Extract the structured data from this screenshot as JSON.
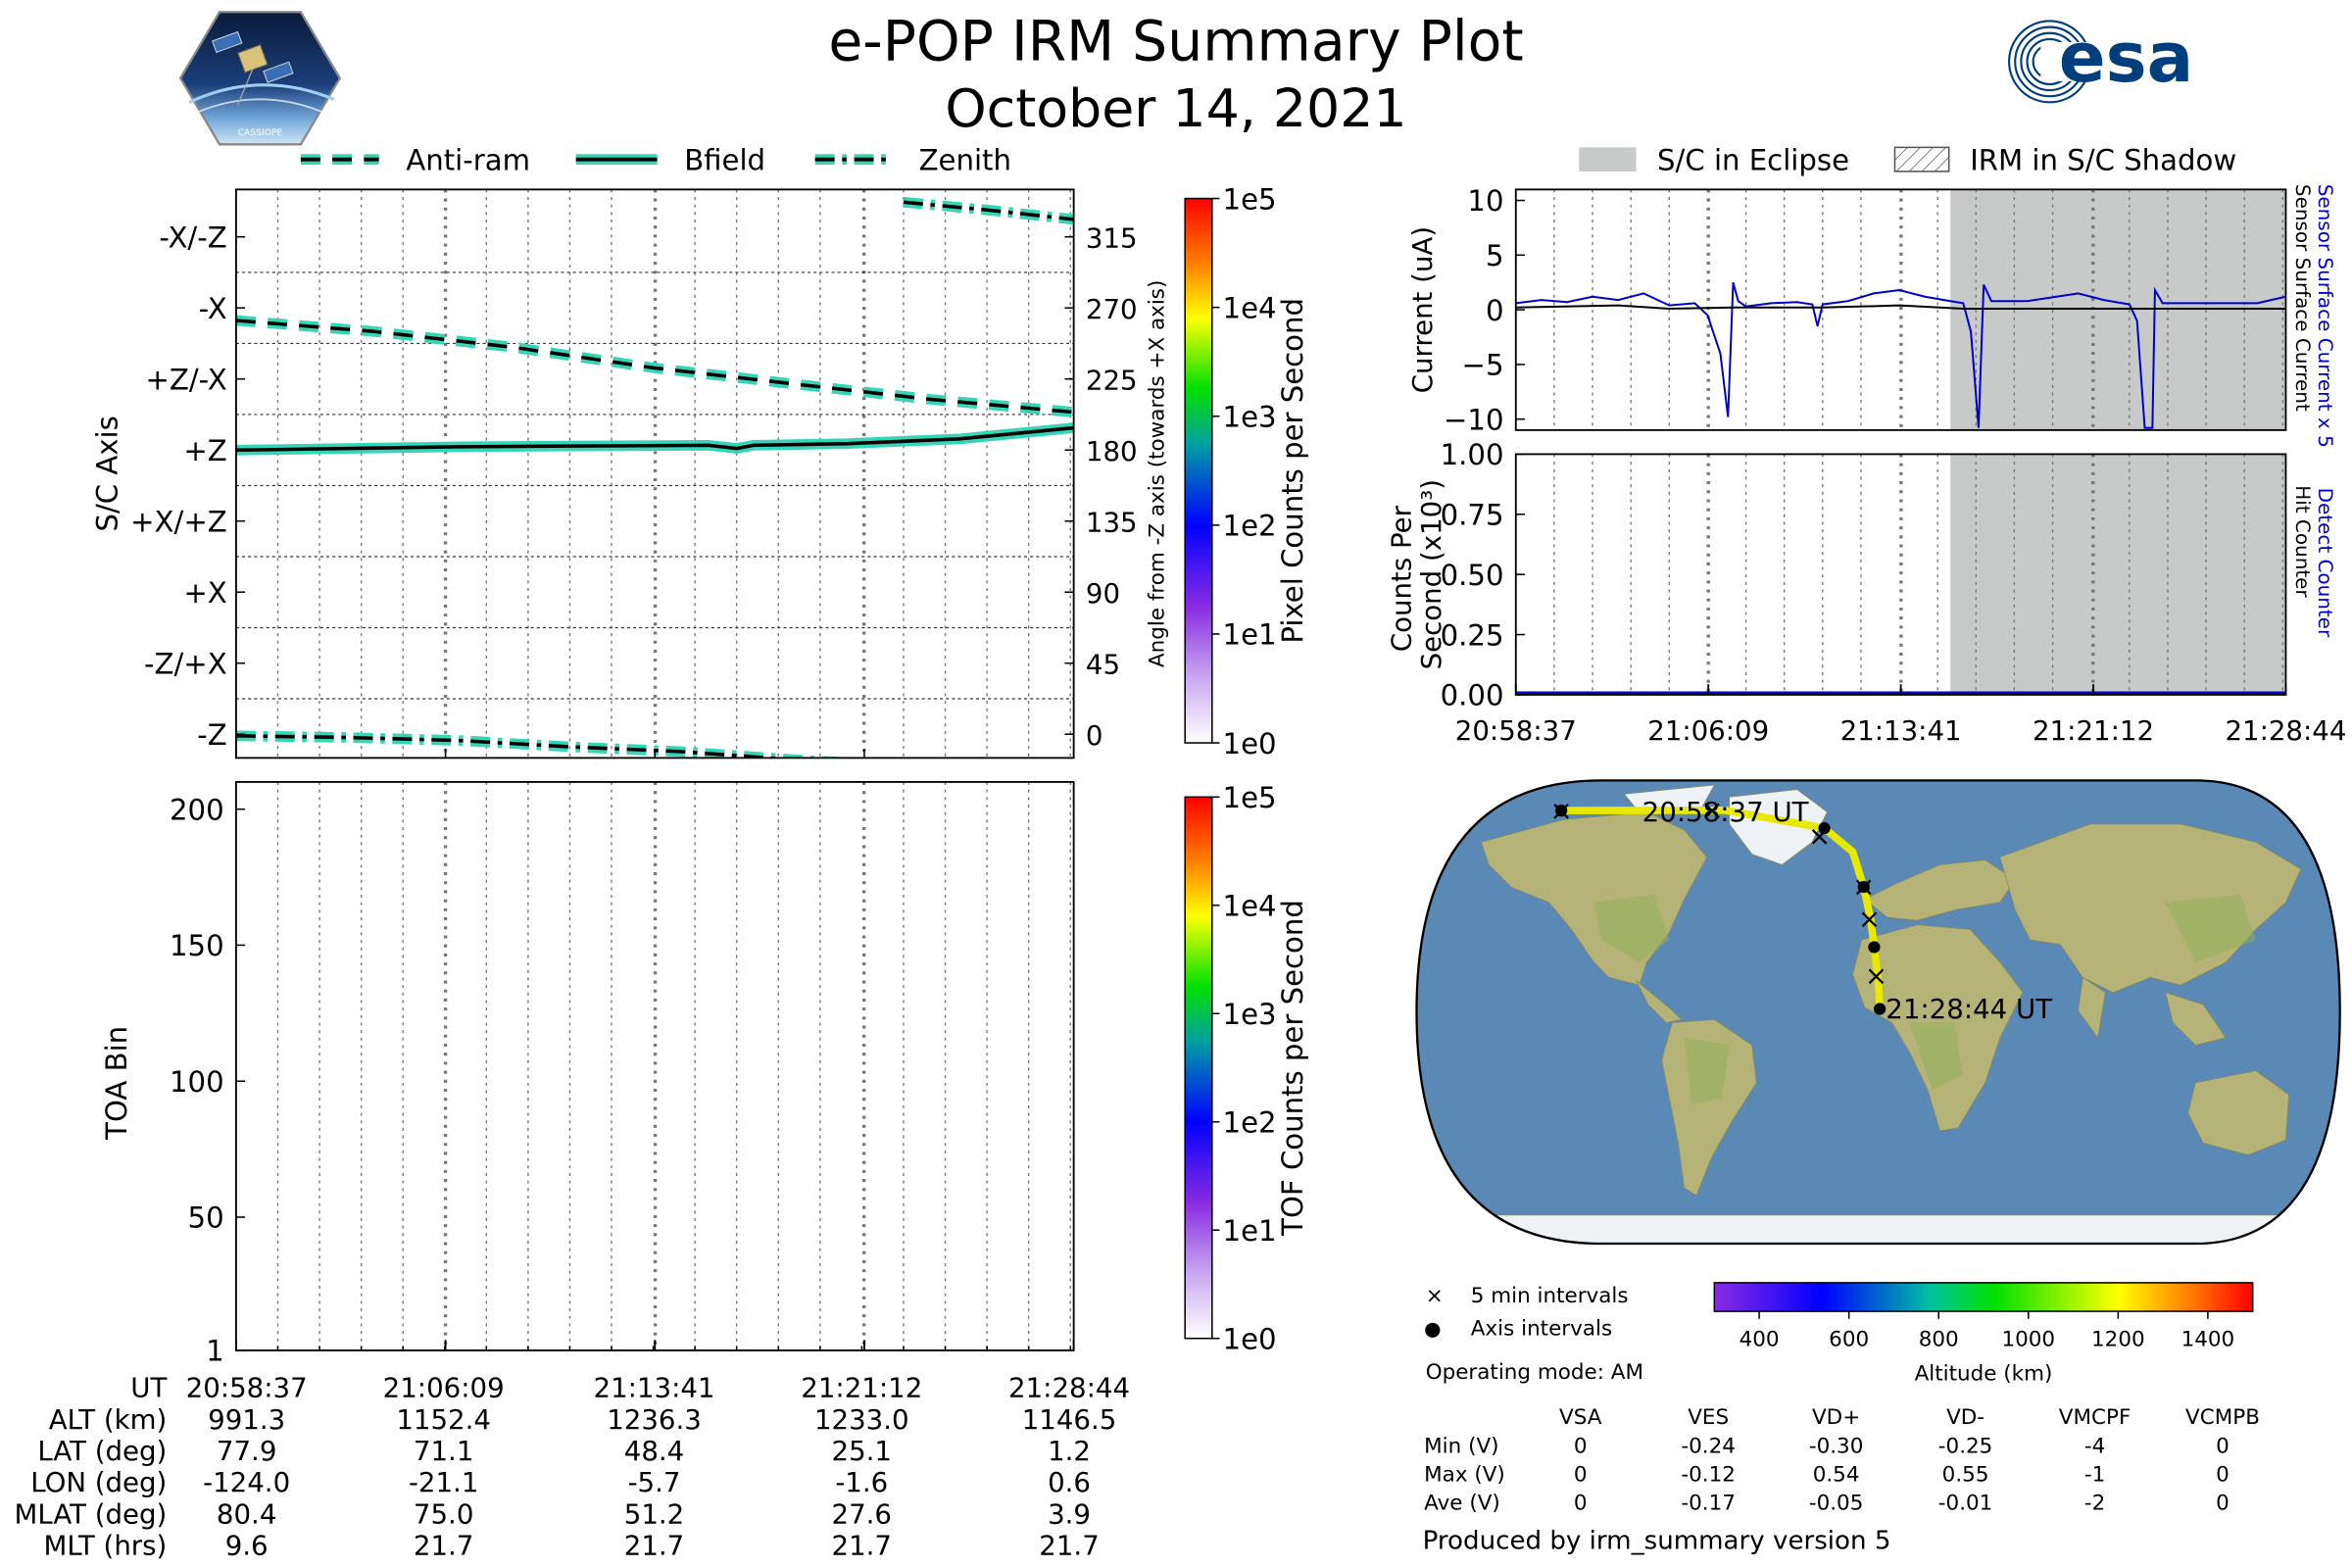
{
  "header": {
    "title": "e-POP IRM Summary Plot",
    "date": "October 14, 2021",
    "cassiope_logo_text": "CASSIOPE",
    "esa_logo_text": "esa"
  },
  "colors": {
    "teal": "#35d6b5",
    "black": "#000000",
    "blue": "#0000cc",
    "eclipse_gray": "#c8cac9",
    "track_yellow": "#e8e800"
  },
  "chart_data": [
    {
      "id": "sc-axis",
      "type": "line",
      "legend": [
        {
          "label": "Anti-ram",
          "style": "dashed"
        },
        {
          "label": "Bfield",
          "style": "solid"
        },
        {
          "label": "Zenith",
          "style": "dashdot"
        }
      ],
      "ylabel": "S/C Axis",
      "ylabel_right": "Angle from -Z axis (towards +X axis)",
      "left_ticks": [
        "-X/-Z",
        "-X",
        "+Z/-X",
        "+Z",
        "+X/+Z",
        "+X",
        "-Z/+X",
        "-Z"
      ],
      "right_ticks": [
        "315",
        "270",
        "225",
        "180",
        "135",
        "90",
        "45",
        "0"
      ],
      "ylim": [
        -15,
        345
      ],
      "x_minutes": [
        0,
        30.12
      ],
      "series": [
        {
          "name": "Anti-ram",
          "points": [
            [
              0,
              262
            ],
            [
              5,
              255
            ],
            [
              10,
              245
            ],
            [
              15,
              232
            ],
            [
              20,
              222
            ],
            [
              25,
              212
            ],
            [
              30.12,
              204
            ]
          ]
        },
        {
          "name": "Bfield",
          "points": [
            [
              0,
              180
            ],
            [
              4,
              181
            ],
            [
              8,
              182
            ],
            [
              12,
              182.5
            ],
            [
              17,
              183
            ],
            [
              18,
              181
            ],
            [
              18.6,
              183
            ],
            [
              22,
              184
            ],
            [
              26,
              187
            ],
            [
              30.12,
              194
            ]
          ]
        },
        {
          "name": "Zenith",
          "points": [
            [
              0,
              -1
            ],
            [
              4,
              -2
            ],
            [
              8,
              -4
            ],
            [
              12,
              -8
            ],
            [
              16,
              -11
            ],
            [
              20,
              -16
            ],
            [
              24,
              -20
            ]
          ]
        },
        {
          "name": "Zenith-upper",
          "points": [
            [
              24,
              337
            ],
            [
              27,
              332
            ],
            [
              30.12,
              326
            ]
          ]
        }
      ],
      "colorbar": {
        "label": "Pixel Counts per Second",
        "ticks": [
          "1e5",
          "1e4",
          "1e3",
          "1e2",
          "1e1",
          "1e0"
        ]
      }
    },
    {
      "id": "toa",
      "type": "heatmap",
      "ylabel": "TOA Bin",
      "y_ticks": [
        "200",
        "150",
        "100",
        "50",
        "1"
      ],
      "ylim": [
        1,
        210
      ],
      "colorbar": {
        "label": "TOF Counts per Second",
        "ticks": [
          "1e5",
          "1e4",
          "1e3",
          "1e2",
          "1e1",
          "1e0"
        ]
      }
    },
    {
      "id": "current",
      "type": "line",
      "legend": [
        {
          "label": "S/C in Eclipse",
          "style": "gray"
        },
        {
          "label": "IRM in S/C Shadow",
          "style": "hatch"
        }
      ],
      "ylabel": "Current (uA)",
      "right_label_blue": "Sensor Surface Current x 5",
      "right_label_black": "Sensor Surface Current",
      "y_ticks": [
        "10",
        "5",
        "0",
        "−5",
        "−10"
      ],
      "ylim": [
        -11,
        11
      ],
      "eclipse_start_min": 17.0,
      "series": [
        {
          "name": "Sensor Surface Current x 5",
          "points": [
            [
              0,
              0.6
            ],
            [
              1,
              0.9
            ],
            [
              2,
              0.7
            ],
            [
              3,
              1.2
            ],
            [
              4,
              0.9
            ],
            [
              5,
              1.5
            ],
            [
              6,
              0.4
            ],
            [
              7,
              0.6
            ],
            [
              7.5,
              -0.5
            ],
            [
              8.0,
              -4
            ],
            [
              8.3,
              -9.8
            ],
            [
              8.5,
              2.5
            ],
            [
              8.7,
              0.8
            ],
            [
              9,
              0.3
            ],
            [
              10,
              0.6
            ],
            [
              11,
              0.7
            ],
            [
              11.6,
              0.5
            ],
            [
              11.8,
              -1.5
            ],
            [
              12,
              0.5
            ],
            [
              13,
              0.8
            ],
            [
              14,
              1.5
            ],
            [
              15,
              1.8
            ],
            [
              16,
              1.2
            ],
            [
              17,
              0.8
            ],
            [
              17.5,
              0.6
            ],
            [
              17.8,
              -2
            ],
            [
              18.1,
              -10.8
            ],
            [
              18.3,
              2.3
            ],
            [
              18.6,
              0.8
            ],
            [
              20,
              0.8
            ],
            [
              22,
              1.5
            ],
            [
              23,
              0.9
            ],
            [
              24,
              0.5
            ],
            [
              24.3,
              -1
            ],
            [
              24.6,
              -10.8
            ],
            [
              24.9,
              -10.8
            ],
            [
              25.0,
              1.8
            ],
            [
              25.3,
              0.6
            ],
            [
              27,
              0.6
            ],
            [
              29,
              0.6
            ],
            [
              30.12,
              1.2
            ]
          ]
        },
        {
          "name": "Sensor Surface Current",
          "points": [
            [
              0,
              0.2
            ],
            [
              4,
              0.4
            ],
            [
              6,
              0.1
            ],
            [
              8.5,
              0.2
            ],
            [
              12,
              0.2
            ],
            [
              15,
              0.4
            ],
            [
              17.5,
              0.1
            ],
            [
              20,
              0.1
            ],
            [
              25,
              0.1
            ],
            [
              30.12,
              0.1
            ]
          ]
        }
      ]
    },
    {
      "id": "counts",
      "type": "line",
      "ylabel": "Counts Per Second (x10³)",
      "right_label_blue": "Detect Counter",
      "right_label_black": "Hit Counter",
      "y_ticks": [
        "1.00",
        "0.75",
        "0.50",
        "0.25",
        "0.00"
      ],
      "ylim": [
        0,
        1
      ],
      "x_ticks": [
        "20:58:37",
        "21:06:09",
        "21:13:41",
        "21:21:12",
        "21:28:44"
      ],
      "series": [
        {
          "name": "Detect Counter",
          "points": [
            [
              0,
              0.0
            ],
            [
              30.12,
              0.0
            ]
          ]
        }
      ]
    },
    {
      "id": "orbit-map",
      "type": "scatter",
      "start_label": "20:58:37 UT",
      "end_label": "21:28:44 UT",
      "track": [
        [
          -124.0,
          77.9
        ],
        [
          -60,
          78
        ],
        [
          -21.1,
          71.1
        ],
        [
          -10,
          62
        ],
        [
          -5.7,
          48.4
        ],
        [
          -3,
          36
        ],
        [
          -1.6,
          25.1
        ],
        [
          0,
          12
        ],
        [
          0.6,
          1.2
        ]
      ],
      "five_min_marks": [
        [
          -124.0,
          77.9
        ],
        [
          -65,
          78
        ],
        [
          -23,
          68
        ],
        [
          -5.7,
          48.4
        ],
        [
          -3.5,
          36
        ],
        [
          -0.8,
          14
        ]
      ],
      "axis_marks": [
        [
          -124.0,
          77.9
        ],
        [
          -21.1,
          71.1
        ],
        [
          -5.7,
          48.4
        ],
        [
          -1.6,
          25.1
        ],
        [
          0.6,
          1.2
        ]
      ],
      "legend": [
        {
          "marker": "×",
          "label": "5 min intervals"
        },
        {
          "marker": "●",
          "label": "Axis intervals"
        }
      ],
      "operating_mode": "Operating mode: AM",
      "colorbar": {
        "label": "Altitude (km)",
        "ticks": [
          "400",
          "600",
          "800",
          "1000",
          "1200",
          "1400"
        ],
        "range": [
          300,
          1500
        ]
      }
    }
  ],
  "x_axis": {
    "ticks": [
      "20:58:37",
      "21:06:09",
      "21:13:41",
      "21:21:12",
      "21:28:44"
    ]
  },
  "ephemeris": {
    "rows": [
      {
        "label": "UT",
        "values": [
          "20:58:37",
          "21:06:09",
          "21:13:41",
          "21:21:12",
          "21:28:44"
        ]
      },
      {
        "label": "ALT (km)",
        "values": [
          "991.3",
          "1152.4",
          "1236.3",
          "1233.0",
          "1146.5"
        ]
      },
      {
        "label": "LAT (deg)",
        "values": [
          "77.9",
          "71.1",
          "48.4",
          "25.1",
          "1.2"
        ]
      },
      {
        "label": "LON (deg)",
        "values": [
          "-124.0",
          "-21.1",
          "-5.7",
          "-1.6",
          "0.6"
        ]
      },
      {
        "label": "MLAT (deg)",
        "values": [
          "80.4",
          "75.0",
          "51.2",
          "27.6",
          "3.9"
        ]
      },
      {
        "label": "MLT (hrs)",
        "values": [
          "9.6",
          "21.7",
          "21.7",
          "21.7",
          "21.7"
        ]
      }
    ]
  },
  "voltage_table": {
    "headers": [
      "VSA",
      "VES",
      "VD+",
      "VD-",
      "VMCPF",
      "VCMPB"
    ],
    "rows": [
      {
        "label": "Min (V)",
        "values": [
          "0",
          "-0.24",
          "-0.30",
          "-0.25",
          "-4",
          "0"
        ]
      },
      {
        "label": "Max (V)",
        "values": [
          "0",
          "-0.12",
          "0.54",
          "0.55",
          "-1",
          "0"
        ]
      },
      {
        "label": "Ave (V)",
        "values": [
          "0",
          "-0.17",
          "-0.05",
          "-0.01",
          "-2",
          "0"
        ]
      }
    ]
  },
  "footer": "Produced by irm_summary version 5"
}
